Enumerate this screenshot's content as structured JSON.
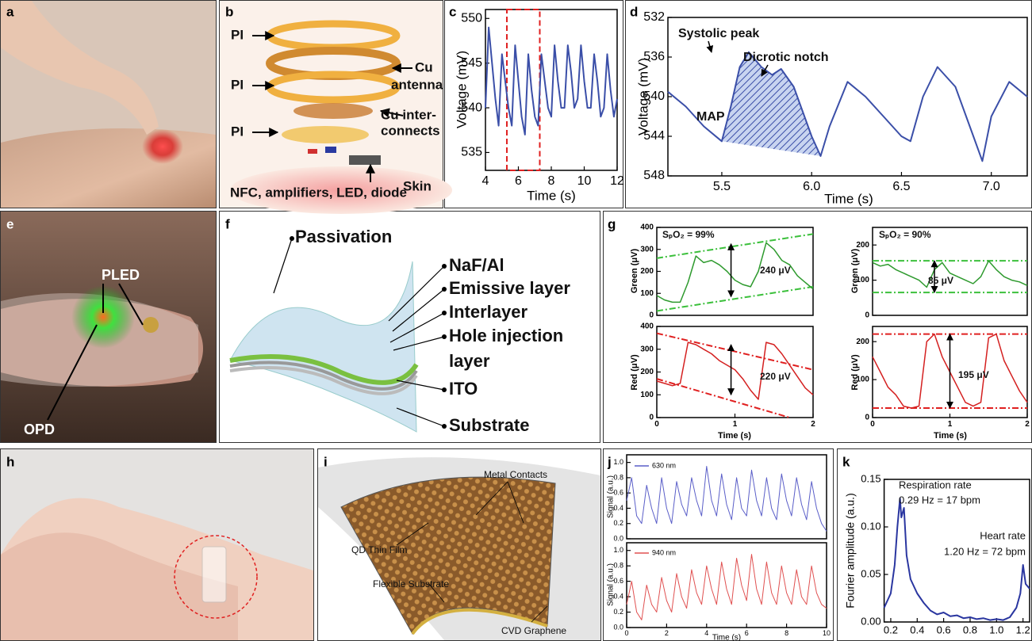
{
  "panels": [
    {
      "label": "a"
    },
    {
      "label": "b",
      "texts": [
        "PI",
        "Cu",
        "antenna",
        "PI",
        "Cu inter-",
        "connects",
        "PI",
        "NFC, amplifiers, LED, diode",
        "Skin"
      ]
    },
    {
      "label": "c"
    },
    {
      "label": "d"
    },
    {
      "label": "e",
      "texts": [
        "PLED",
        "OPD"
      ]
    },
    {
      "label": "f",
      "texts": [
        "Passivation",
        "NaF/Al",
        "Emissive layer",
        "Interlayer",
        "Hole injection",
        "layer",
        "ITO",
        "Substrate"
      ]
    },
    {
      "label": "g"
    },
    {
      "label": "h"
    },
    {
      "label": "i",
      "texts": [
        "Metal Contacts",
        "QD Thin Film",
        "Flexible Substrate",
        "CVD Graphene"
      ]
    },
    {
      "label": "j"
    },
    {
      "label": "k"
    }
  ],
  "chart_data": [
    {
      "type": "line",
      "xlabel": "Time (s)",
      "ylabel": "Voltage (mV)",
      "xlim": [
        4,
        12
      ],
      "xticks": [
        4,
        6,
        8,
        10,
        12
      ],
      "ylim": [
        533,
        551
      ],
      "yticks": [
        535,
        540,
        545,
        550
      ],
      "highlight_x": [
        5.3,
        7.3
      ],
      "highlight_color": "#e02020",
      "series": [
        {
          "color": "#3b4fa8",
          "x": [
            4.0,
            4.2,
            4.4,
            4.6,
            4.8,
            5.0,
            5.2,
            5.4,
            5.6,
            5.8,
            6.0,
            6.2,
            6.4,
            6.6,
            6.8,
            7.0,
            7.2,
            7.4,
            7.6,
            7.8,
            8.0,
            8.2,
            8.4,
            8.6,
            8.8,
            9.0,
            9.2,
            9.4,
            9.6,
            9.8,
            10.0,
            10.2,
            10.4,
            10.6,
            10.8,
            11.0,
            11.2,
            11.4,
            11.6,
            11.8,
            12.0
          ],
          "values": [
            540,
            549,
            545,
            541,
            538,
            546,
            543,
            540,
            538,
            547,
            543,
            539,
            537,
            546,
            542,
            539,
            538,
            546,
            543,
            540,
            539,
            547,
            543,
            540,
            540,
            547,
            544,
            540,
            541,
            547,
            543,
            540,
            540,
            546,
            543,
            539,
            540,
            546,
            542,
            539,
            541
          ]
        }
      ]
    },
    {
      "type": "line",
      "xlabel": "Time (s)",
      "ylabel": "Voltage (mV)",
      "y_inverted": true,
      "xlim": [
        5.2,
        7.2
      ],
      "xticks": [
        5.5,
        {
          "value": 6,
          "label": "6.0"
        },
        6.5,
        {
          "value": 7,
          "label": "7.0"
        }
      ],
      "ylim": [
        532,
        548
      ],
      "yticks": [
        532,
        536,
        540,
        544,
        548
      ],
      "annotations": [
        {
          "text": "Systolic peak"
        },
        {
          "text": "Dicrotic notch"
        },
        {
          "text": "MAP"
        }
      ],
      "series": [
        {
          "color": "#3b4fa8",
          "x": [
            5.2,
            5.3,
            5.4,
            5.5,
            5.55,
            5.6,
            5.65,
            5.72,
            5.78,
            5.83,
            5.9,
            6.0,
            6.05,
            6.1,
            6.2,
            6.3,
            6.4,
            6.5,
            6.55,
            6.62,
            6.7,
            6.8,
            6.9,
            6.95,
            7.0,
            7.1,
            7.2
          ],
          "values": [
            539.5,
            541,
            543,
            544.5,
            541,
            537,
            535.5,
            537,
            537.8,
            537.2,
            539,
            544,
            546,
            543,
            538.5,
            540,
            542,
            544,
            544.5,
            540,
            537,
            539,
            544,
            546.5,
            542,
            538.5,
            540
          ]
        }
      ]
    },
    {
      "type": "line",
      "ylabel": "Green (μV)",
      "xlim": [
        0,
        2
      ],
      "ylim": [
        0,
        400
      ],
      "yticks": [
        0,
        100,
        200,
        300,
        400
      ],
      "annotations": [
        {
          "text": "SₚO₂ = 99%"
        },
        {
          "text": "240 μV"
        }
      ],
      "reference_lines": [
        {
          "color": "#3cc03c",
          "x": [
            0,
            2
          ],
          "y": [
            260,
            370
          ]
        },
        {
          "color": "#3cc03c",
          "x": [
            0,
            2
          ],
          "y": [
            20,
            130
          ]
        }
      ],
      "arrows": [
        {
          "x": 0.95,
          "y": [
            85,
            325
          ]
        }
      ],
      "series": [
        {
          "color": "#2e9a2e",
          "x": [
            0,
            0.1,
            0.2,
            0.3,
            0.4,
            0.5,
            0.6,
            0.7,
            0.8,
            0.9,
            1.0,
            1.1,
            1.2,
            1.3,
            1.4,
            1.5,
            1.6,
            1.7,
            1.8,
            1.9,
            2.0
          ],
          "values": [
            90,
            70,
            60,
            60,
            150,
            270,
            240,
            250,
            230,
            200,
            160,
            140,
            130,
            200,
            330,
            300,
            250,
            230,
            180,
            150,
            120
          ]
        }
      ]
    },
    {
      "type": "line",
      "xlabel": "Time (s)",
      "ylabel": "Red (μV)",
      "xlim": [
        0,
        2
      ],
      "xticks": [
        0,
        1,
        2
      ],
      "ylim": [
        0,
        400
      ],
      "yticks": [
        0,
        100,
        200,
        300,
        400
      ],
      "annotations": [
        {
          "text": "220 μV"
        }
      ],
      "reference_lines": [
        {
          "color": "#e02020",
          "x": [
            0,
            2
          ],
          "y": [
            370,
            210
          ]
        },
        {
          "color": "#e02020",
          "x": [
            0,
            1.7
          ],
          "y": [
            170,
            0
          ]
        }
      ],
      "arrows": [
        {
          "x": 0.95,
          "y": [
            100,
            320
          ]
        }
      ],
      "series": [
        {
          "color": "#d42020",
          "x": [
            0,
            0.1,
            0.2,
            0.3,
            0.4,
            0.5,
            0.6,
            0.7,
            0.8,
            0.9,
            1.0,
            1.1,
            1.2,
            1.3,
            1.4,
            1.5,
            1.6,
            1.7,
            1.8,
            1.9,
            2.0
          ],
          "values": [
            160,
            150,
            140,
            150,
            330,
            320,
            300,
            280,
            250,
            230,
            210,
            170,
            120,
            80,
            330,
            320,
            280,
            230,
            180,
            130,
            100
          ]
        }
      ]
    },
    {
      "type": "line",
      "ylabel": "Green (μV)",
      "xlim": [
        0,
        2
      ],
      "ylim": [
        0,
        250
      ],
      "yticks": [
        0,
        100,
        200
      ],
      "annotations": [
        {
          "text": "SₚO₂ = 90%"
        },
        {
          "text": "85 μV"
        }
      ],
      "reference_lines": [
        {
          "color": "#3cc03c",
          "x": [
            0,
            2
          ],
          "y": [
            155,
            155
          ]
        },
        {
          "color": "#3cc03c",
          "x": [
            0,
            2
          ],
          "y": [
            65,
            65
          ]
        }
      ],
      "arrows": [
        {
          "x": 0.8,
          "y": [
            65,
            155
          ]
        }
      ],
      "series": [
        {
          "color": "#2e9a2e",
          "x": [
            0,
            0.1,
            0.2,
            0.3,
            0.4,
            0.5,
            0.6,
            0.7,
            0.8,
            0.9,
            1.0,
            1.1,
            1.2,
            1.3,
            1.4,
            1.5,
            1.6,
            1.7,
            1.8,
            1.9,
            2.0
          ],
          "values": [
            150,
            140,
            145,
            130,
            120,
            110,
            100,
            80,
            130,
            150,
            120,
            110,
            100,
            90,
            110,
            155,
            130,
            110,
            100,
            95,
            85
          ]
        }
      ]
    },
    {
      "type": "line",
      "xlabel": "Time (s)",
      "ylabel": "Red (μV)",
      "xlim": [
        0,
        2
      ],
      "xticks": [
        0,
        1,
        2
      ],
      "ylim": [
        0,
        240
      ],
      "yticks": [
        0,
        100,
        200
      ],
      "annotations": [
        {
          "text": "195 μV"
        }
      ],
      "reference_lines": [
        {
          "color": "#e02020",
          "x": [
            0,
            2
          ],
          "y": [
            220,
            220
          ]
        },
        {
          "color": "#e02020",
          "x": [
            0,
            2
          ],
          "y": [
            25,
            25
          ]
        }
      ],
      "arrows": [
        {
          "x": 1.0,
          "y": [
            25,
            220
          ]
        }
      ],
      "series": [
        {
          "color": "#d42020",
          "x": [
            0,
            0.1,
            0.2,
            0.3,
            0.4,
            0.5,
            0.6,
            0.7,
            0.8,
            0.9,
            1.0,
            1.1,
            1.2,
            1.3,
            1.4,
            1.5,
            1.6,
            1.7,
            1.8,
            1.9,
            2.0
          ],
          "values": [
            160,
            120,
            80,
            60,
            30,
            25,
            30,
            200,
            220,
            160,
            120,
            80,
            40,
            30,
            40,
            210,
            220,
            150,
            110,
            70,
            40
          ]
        }
      ]
    },
    {
      "type": "line",
      "ylabel": "Signal (a.u.)",
      "xlim": [
        0,
        10
      ],
      "ylim": [
        0,
        1.1
      ],
      "yticks": [
        {
          "value": 0,
          "label": "0.0"
        },
        0.2,
        0.4,
        0.6,
        0.8,
        {
          "value": 1,
          "label": "1.0"
        }
      ],
      "series": [
        {
          "name": "630 nm",
          "color": "#5a5ec8",
          "x": [
            0,
            0.25,
            0.5,
            0.75,
            1,
            1.25,
            1.5,
            1.75,
            2,
            2.25,
            2.5,
            2.75,
            3,
            3.25,
            3.5,
            3.75,
            4,
            4.25,
            4.5,
            4.75,
            5,
            5.25,
            5.5,
            5.75,
            6,
            6.25,
            6.5,
            6.75,
            7,
            7.25,
            7.5,
            7.75,
            8,
            8.25,
            8.5,
            8.75,
            9,
            9.25,
            9.5,
            9.75,
            10
          ],
          "values": [
            0.5,
            0.8,
            0.3,
            0.2,
            0.7,
            0.4,
            0.2,
            0.8,
            0.4,
            0.2,
            0.75,
            0.45,
            0.3,
            0.8,
            0.5,
            0.3,
            0.95,
            0.5,
            0.3,
            0.85,
            0.45,
            0.25,
            0.8,
            0.4,
            0.3,
            0.9,
            0.5,
            0.3,
            0.8,
            0.4,
            0.25,
            0.85,
            0.5,
            0.3,
            0.8,
            0.45,
            0.25,
            0.75,
            0.4,
            0.2,
            0.1
          ]
        }
      ]
    },
    {
      "type": "line",
      "xlabel": "Time (s)",
      "ylabel": "Signal (a.u.)",
      "xlim": [
        0,
        10
      ],
      "xticks": [
        0,
        2,
        4,
        6,
        8,
        10
      ],
      "ylim": [
        0,
        1.1
      ],
      "yticks": [
        {
          "value": 0,
          "label": "0.0"
        },
        0.2,
        0.4,
        0.6,
        0.8,
        {
          "value": 1,
          "label": "1.0"
        }
      ],
      "series": [
        {
          "name": "940 nm",
          "color": "#e05050",
          "x": [
            0,
            0.25,
            0.5,
            0.75,
            1,
            1.25,
            1.5,
            1.75,
            2,
            2.25,
            2.5,
            2.75,
            3,
            3.25,
            3.5,
            3.75,
            4,
            4.25,
            4.5,
            4.75,
            5,
            5.25,
            5.5,
            5.75,
            6,
            6.25,
            6.5,
            6.75,
            7,
            7.25,
            7.5,
            7.75,
            8,
            8.25,
            8.5,
            8.75,
            9,
            9.25,
            9.5,
            9.75,
            10
          ],
          "values": [
            0.3,
            0.6,
            0.2,
            0.1,
            0.55,
            0.3,
            0.2,
            0.65,
            0.35,
            0.2,
            0.7,
            0.4,
            0.25,
            0.75,
            0.45,
            0.3,
            0.8,
            0.5,
            0.3,
            0.85,
            0.5,
            0.3,
            0.9,
            0.55,
            0.35,
            0.95,
            0.5,
            0.3,
            0.85,
            0.45,
            0.3,
            0.8,
            0.45,
            0.3,
            0.75,
            0.4,
            0.3,
            0.8,
            0.45,
            0.3,
            0.25
          ]
        }
      ]
    },
    {
      "type": "line",
      "ylabel": "Fourier amplitude (a.u.)",
      "xlim": [
        0.15,
        1.25
      ],
      "xticks": [
        0.2,
        0.4,
        0.6,
        0.8,
        {
          "value": 1,
          "label": "1.0"
        },
        1.2
      ],
      "ylim": [
        0,
        0.15
      ],
      "yticks": [
        {
          "value": 0,
          "label": "0.00"
        },
        {
          "value": 0.05,
          "label": "0.05"
        },
        {
          "value": 0.1,
          "label": "0.10"
        },
        {
          "value": 0.15,
          "label": "0.15"
        }
      ],
      "annotations": [
        {
          "text": "Respiration rate"
        },
        {
          "text": "0.29 Hz = 17 bpm"
        },
        {
          "text": "Heart rate"
        },
        {
          "text": "1.20 Hz = 72 bpm"
        }
      ],
      "series": [
        {
          "color": "#2a36a0",
          "x": [
            0.15,
            0.2,
            0.23,
            0.25,
            0.27,
            0.28,
            0.3,
            0.32,
            0.35,
            0.4,
            0.45,
            0.5,
            0.55,
            0.6,
            0.65,
            0.7,
            0.75,
            0.8,
            0.85,
            0.9,
            0.95,
            1.0,
            1.05,
            1.1,
            1.15,
            1.18,
            1.2,
            1.22,
            1.25
          ],
          "values": [
            0.015,
            0.03,
            0.06,
            0.1,
            0.13,
            0.11,
            0.12,
            0.07,
            0.045,
            0.03,
            0.02,
            0.012,
            0.008,
            0.01,
            0.006,
            0.007,
            0.004,
            0.005,
            0.003,
            0.004,
            0.002,
            0.003,
            0.002,
            0.005,
            0.015,
            0.03,
            0.06,
            0.04,
            0.035
          ]
        }
      ]
    }
  ]
}
